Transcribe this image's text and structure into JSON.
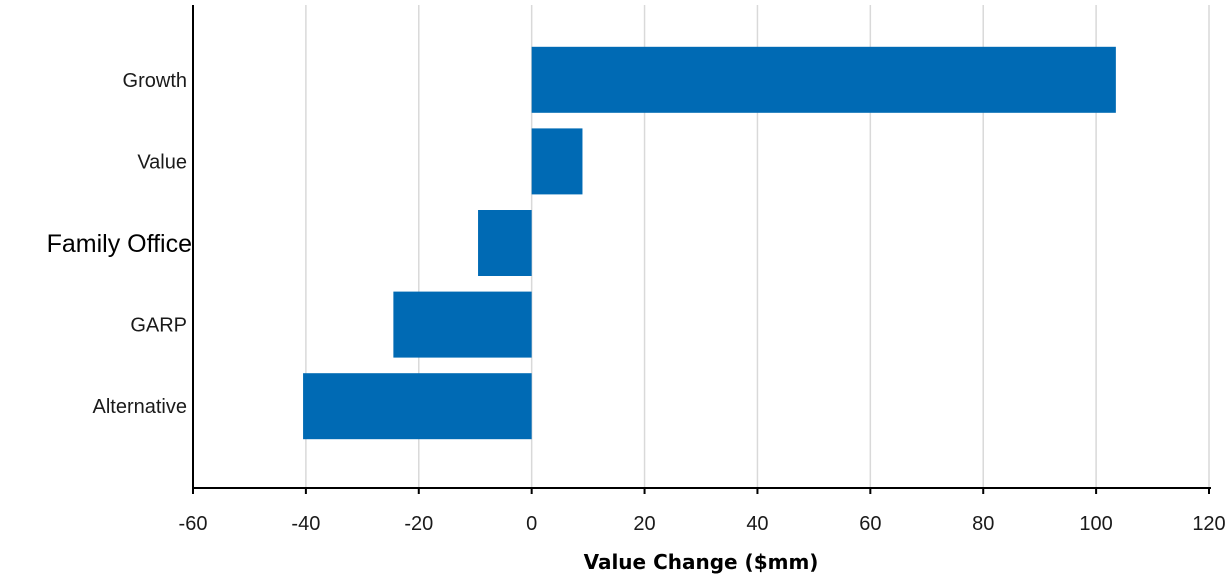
{
  "chart_data": {
    "type": "bar",
    "orientation": "horizontal",
    "categories": [
      "Growth",
      "Value",
      "Family Office",
      "GARP",
      "Alternative"
    ],
    "values": [
      103.5,
      9,
      -9.5,
      -24.5,
      -40.5
    ],
    "title": "",
    "xlabel": "Value Change ($mm)",
    "ylabel": "",
    "xlim": [
      -60,
      120
    ],
    "xticks": [
      -60,
      -40,
      -20,
      0,
      20,
      40,
      60,
      80,
      100,
      120
    ],
    "grid": "vertical",
    "legend": "none",
    "bar_color": "#006AB4"
  }
}
